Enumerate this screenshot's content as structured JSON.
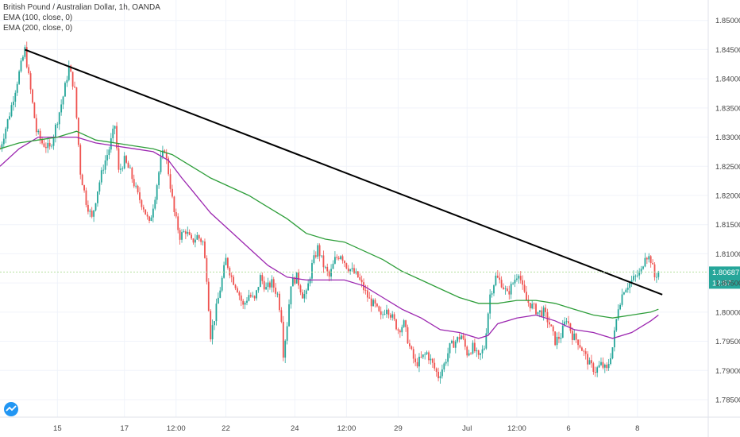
{
  "header": {
    "symbol_line": "British Pound / Australian Dollar, 1h, OANDA",
    "indicators": [
      "EMA (100, close, 0)",
      "EMA (200, close, 0)"
    ]
  },
  "chart_data": {
    "type": "candlestick",
    "title": "British Pound / Australian Dollar, 1h, OANDA",
    "y_axis": {
      "position": "right",
      "ylim": [
        1.782,
        1.8535
      ],
      "ticks": [
        "1.85000",
        "1.84500",
        "1.84000",
        "1.83500",
        "1.83000",
        "1.82500",
        "1.82000",
        "1.81500",
        "1.81000",
        "1.80500",
        "1.80000",
        "1.79500",
        "1.79000",
        "1.78500"
      ],
      "tick_values": [
        1.85,
        1.845,
        1.84,
        1.835,
        1.83,
        1.825,
        1.82,
        1.815,
        1.81,
        1.805,
        1.8,
        1.795,
        1.79,
        1.785
      ]
    },
    "x_axis": {
      "xlim": [
        0,
        370
      ],
      "labels": [
        {
          "text": "15",
          "x": 30
        },
        {
          "text": "17",
          "x": 65
        },
        {
          "text": "12:00",
          "x": 92
        },
        {
          "text": "22",
          "x": 118
        },
        {
          "text": "24",
          "x": 154
        },
        {
          "text": "12:00",
          "x": 181
        },
        {
          "text": "29",
          "x": 208
        },
        {
          "text": "Jul",
          "x": 244
        },
        {
          "text": "12:00",
          "x": 270
        },
        {
          "text": "6",
          "x": 297
        },
        {
          "text": "8",
          "x": 333
        }
      ]
    },
    "price_path": [
      [
        0,
        1.828
      ],
      [
        5,
        1.834
      ],
      [
        10,
        1.841
      ],
      [
        13,
        1.845
      ],
      [
        16,
        1.838
      ],
      [
        19,
        1.831
      ],
      [
        22,
        1.829
      ],
      [
        26,
        1.828
      ],
      [
        30,
        1.833
      ],
      [
        33,
        1.837
      ],
      [
        36,
        1.842
      ],
      [
        39,
        1.838
      ],
      [
        42,
        1.824
      ],
      [
        45,
        1.819
      ],
      [
        48,
        1.816
      ],
      [
        51,
        1.821
      ],
      [
        54,
        1.825
      ],
      [
        57,
        1.828
      ],
      [
        60,
        1.832
      ],
      [
        62,
        1.824
      ],
      [
        65,
        1.826
      ],
      [
        68,
        1.824
      ],
      [
        72,
        1.82
      ],
      [
        75,
        1.818
      ],
      [
        78,
        1.815
      ],
      [
        81,
        1.82
      ],
      [
        84,
        1.826
      ],
      [
        86,
        1.828
      ],
      [
        88,
        1.824
      ],
      [
        91,
        1.817
      ],
      [
        94,
        1.813
      ],
      [
        97,
        1.814
      ],
      [
        100,
        1.812
      ],
      [
        103,
        1.813
      ],
      [
        106,
        1.812
      ],
      [
        108,
        1.806
      ],
      [
        110,
        1.796
      ],
      [
        112,
        1.799
      ],
      [
        115,
        1.804
      ],
      [
        118,
        1.809
      ],
      [
        121,
        1.806
      ],
      [
        124,
        1.804
      ],
      [
        127,
        1.801
      ],
      [
        130,
        1.803
      ],
      [
        133,
        1.802
      ],
      [
        136,
        1.806
      ],
      [
        139,
        1.804
      ],
      [
        142,
        1.805
      ],
      [
        145,
        1.803
      ],
      [
        147,
        1.799
      ],
      [
        148,
        1.793
      ],
      [
        150,
        1.798
      ],
      [
        152,
        1.805
      ],
      [
        155,
        1.806
      ],
      [
        158,
        1.803
      ],
      [
        160,
        1.803
      ],
      [
        163,
        1.808
      ],
      [
        166,
        1.811
      ],
      [
        169,
        1.808
      ],
      [
        172,
        1.806
      ],
      [
        175,
        1.809
      ],
      [
        178,
        1.81
      ],
      [
        181,
        1.808
      ],
      [
        184,
        1.807
      ],
      [
        187,
        1.806
      ],
      [
        190,
        1.804
      ],
      [
        193,
        1.802
      ],
      [
        196,
        1.801
      ],
      [
        199,
        1.799
      ],
      [
        202,
        1.801
      ],
      [
        205,
        1.799
      ],
      [
        208,
        1.797
      ],
      [
        211,
        1.798
      ],
      [
        214,
        1.794
      ],
      [
        217,
        1.791
      ],
      [
        220,
        1.792
      ],
      [
        223,
        1.793
      ],
      [
        226,
        1.791
      ],
      [
        229,
        1.789
      ],
      [
        232,
        1.791
      ],
      [
        235,
        1.794
      ],
      [
        238,
        1.795
      ],
      [
        241,
        1.796
      ],
      [
        244,
        1.793
      ],
      [
        247,
        1.794
      ],
      [
        250,
        1.792
      ],
      [
        253,
        1.794
      ],
      [
        256,
        1.803
      ],
      [
        259,
        1.806
      ],
      [
        262,
        1.805
      ],
      [
        265,
        1.803
      ],
      [
        268,
        1.805
      ],
      [
        271,
        1.807
      ],
      [
        273,
        1.804
      ],
      [
        275,
        1.802
      ],
      [
        278,
        1.801
      ],
      [
        281,
        1.8
      ],
      [
        284,
        1.8
      ],
      [
        287,
        1.798
      ],
      [
        290,
        1.795
      ],
      [
        293,
        1.796
      ],
      [
        296,
        1.799
      ],
      [
        299,
        1.796
      ],
      [
        302,
        1.795
      ],
      [
        305,
        1.793
      ],
      [
        308,
        1.791
      ],
      [
        311,
        1.79
      ],
      [
        314,
        1.791
      ],
      [
        317,
        1.79
      ],
      [
        320,
        1.794
      ],
      [
        323,
        1.801
      ],
      [
        326,
        1.804
      ],
      [
        329,
        1.805
      ],
      [
        332,
        1.806
      ],
      [
        335,
        1.807
      ],
      [
        337,
        1.81
      ],
      [
        340,
        1.809
      ],
      [
        342,
        1.806
      ],
      [
        344,
        1.807
      ]
    ],
    "ema_100": [
      [
        0,
        1.825
      ],
      [
        10,
        1.828
      ],
      [
        20,
        1.83
      ],
      [
        30,
        1.83
      ],
      [
        40,
        1.83
      ],
      [
        50,
        1.829
      ],
      [
        60,
        1.8285
      ],
      [
        70,
        1.828
      ],
      [
        80,
        1.8275
      ],
      [
        88,
        1.826
      ],
      [
        95,
        1.823
      ],
      [
        100,
        1.821
      ],
      [
        105,
        1.819
      ],
      [
        110,
        1.817
      ],
      [
        120,
        1.814
      ],
      [
        130,
        1.811
      ],
      [
        140,
        1.808
      ],
      [
        150,
        1.806
      ],
      [
        160,
        1.8055
      ],
      [
        170,
        1.8055
      ],
      [
        180,
        1.8055
      ],
      [
        190,
        1.8045
      ],
      [
        200,
        1.8025
      ],
      [
        210,
        1.8005
      ],
      [
        220,
        1.799
      ],
      [
        230,
        1.797
      ],
      [
        240,
        1.7965
      ],
      [
        250,
        1.7955
      ],
      [
        255,
        1.796
      ],
      [
        260,
        1.798
      ],
      [
        270,
        1.799
      ],
      [
        280,
        1.7995
      ],
      [
        290,
        1.7985
      ],
      [
        300,
        1.797
      ],
      [
        310,
        1.7965
      ],
      [
        320,
        1.7955
      ],
      [
        330,
        1.7965
      ],
      [
        340,
        1.7985
      ],
      [
        344,
        1.7995
      ]
    ],
    "ema_200": [
      [
        0,
        1.828
      ],
      [
        10,
        1.829
      ],
      [
        20,
        1.8295
      ],
      [
        30,
        1.83
      ],
      [
        40,
        1.831
      ],
      [
        50,
        1.8295
      ],
      [
        60,
        1.829
      ],
      [
        70,
        1.8285
      ],
      [
        80,
        1.828
      ],
      [
        90,
        1.827
      ],
      [
        100,
        1.825
      ],
      [
        110,
        1.823
      ],
      [
        120,
        1.8215
      ],
      [
        130,
        1.82
      ],
      [
        140,
        1.818
      ],
      [
        150,
        1.816
      ],
      [
        160,
        1.8135
      ],
      [
        170,
        1.8125
      ],
      [
        180,
        1.812
      ],
      [
        190,
        1.8105
      ],
      [
        200,
        1.809
      ],
      [
        210,
        1.807
      ],
      [
        220,
        1.8055
      ],
      [
        230,
        1.804
      ],
      [
        240,
        1.8025
      ],
      [
        250,
        1.8015
      ],
      [
        260,
        1.8015
      ],
      [
        270,
        1.802
      ],
      [
        280,
        1.802
      ],
      [
        290,
        1.8015
      ],
      [
        300,
        1.8005
      ],
      [
        310,
        1.7995
      ],
      [
        320,
        1.799
      ],
      [
        330,
        1.7995
      ],
      [
        340,
        1.8
      ],
      [
        344,
        1.8005
      ]
    ],
    "trendline": [
      [
        13,
        1.845
      ],
      [
        346,
        1.803
      ]
    ],
    "current_price": {
      "value": 1.80687,
      "label": "1.80687",
      "countdown": "12:57",
      "color": "#26a69a"
    },
    "colors": {
      "up": "#26a69a",
      "down": "#ef5350",
      "ema_100": "#9c27b0",
      "ema_200": "#2e9e3a",
      "trendline": "#000000",
      "price_line": "#b5e0a0"
    }
  }
}
